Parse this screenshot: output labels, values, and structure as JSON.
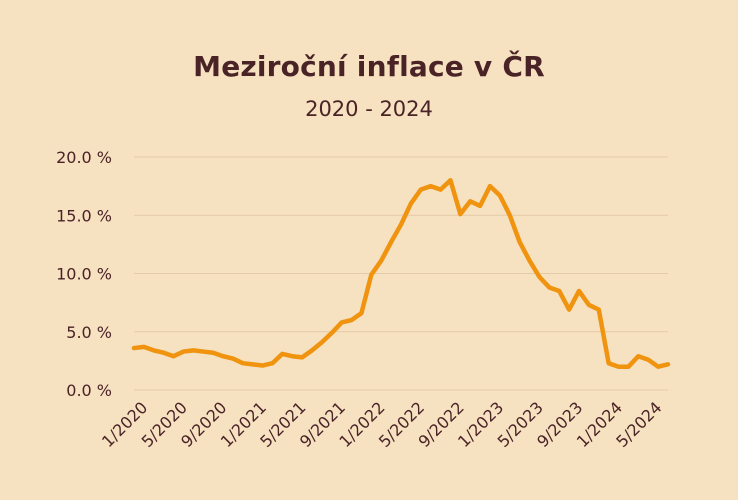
{
  "chart_data": {
    "type": "line",
    "title": "Meziroční inflace v ČR",
    "subtitle": "2020 - 2024",
    "xlabel": "",
    "ylabel": "",
    "ylim": [
      0,
      20
    ],
    "y_ticks": [
      0,
      5,
      10,
      15,
      20
    ],
    "y_tick_labels": [
      "0.0 %",
      "5.0 %",
      "10.0 %",
      "15.0 %",
      "20.0 %"
    ],
    "x_tick_labels": [
      "1/2020",
      "5/2020",
      "9/2020",
      "1/2021",
      "5/2021",
      "9/2021",
      "1/2022",
      "5/2022",
      "9/2022",
      "1/2023",
      "5/2023",
      "9/2023",
      "1/2024",
      "5/2024"
    ],
    "grid": true,
    "legend": "none",
    "line_color": "#f0930e",
    "grid_color": "#e3cba8",
    "series": [
      {
        "values": [
          3.6,
          3.7,
          3.4,
          3.2,
          2.9,
          3.3,
          3.4,
          3.3,
          3.2,
          2.9,
          2.7,
          2.3,
          2.2,
          2.1,
          2.3,
          3.1,
          2.9,
          2.8,
          3.4,
          4.1,
          4.9,
          5.8,
          6.0,
          6.6,
          9.9,
          11.1,
          12.7,
          14.2,
          16.0,
          17.2,
          17.5,
          17.2,
          18.0,
          15.1,
          16.2,
          15.8,
          17.5,
          16.7,
          15.0,
          12.7,
          11.1,
          9.7,
          8.8,
          8.5,
          6.9,
          8.5,
          7.3,
          6.9,
          2.3,
          2.0,
          2.0,
          2.9,
          2.6,
          2.0,
          2.2
        ]
      }
    ]
  }
}
